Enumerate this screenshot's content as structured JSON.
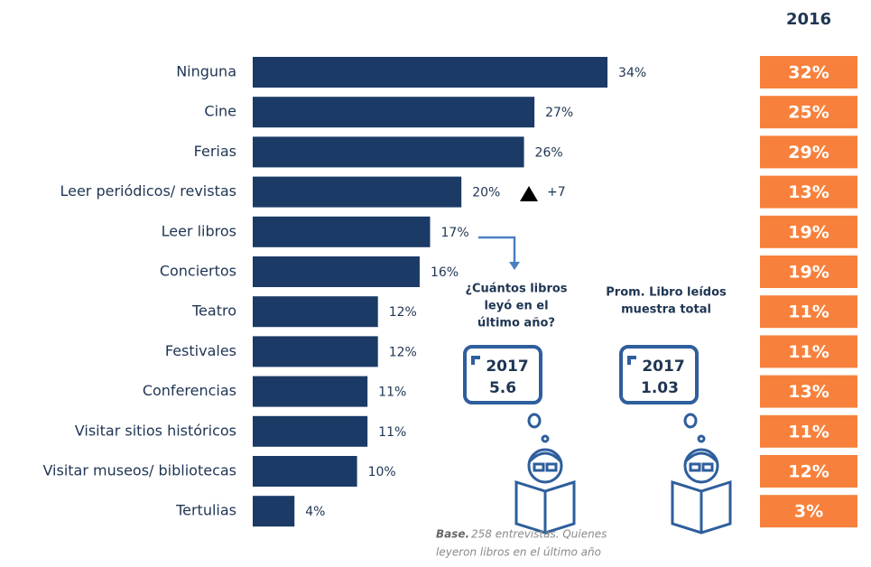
{
  "chart_data": {
    "type": "bar",
    "orientation": "horizontal",
    "categories": [
      "Ninguna",
      "Cine",
      "Ferias",
      "Leer periódicos/ revistas",
      "Leer libros",
      "Conciertos",
      "Teatro",
      "Festivales",
      "Conferencias",
      "Visitar sitios históricos",
      "Visitar museos/ bibliotecas",
      "Tertulias"
    ],
    "values": [
      34,
      27,
      26,
      20,
      17,
      16,
      12,
      12,
      11,
      11,
      10,
      4
    ],
    "value_labels": [
      "34%",
      "27%",
      "26%",
      "20%",
      "17%",
      "16%",
      "12%",
      "12%",
      "11%",
      "11%",
      "10%",
      "4%"
    ],
    "color": "#1b3a66",
    "comparison": {
      "title": "2016",
      "values": [
        32,
        25,
        29,
        13,
        19,
        19,
        11,
        11,
        13,
        11,
        12,
        3
      ],
      "value_labels": [
        "32%",
        "25%",
        "29%",
        "13%",
        "19%",
        "19%",
        "11%",
        "11%",
        "13%",
        "11%",
        "12%",
        "3%"
      ],
      "color": "#f7813c"
    },
    "annotations": {
      "change": "+7",
      "question": [
        "¿Cuántos libros",
        "leyó en el",
        "último año?"
      ],
      "question_year": "2017",
      "question_value": 5.6,
      "average": [
        "Prom. Libro leídos",
        "muestra total"
      ],
      "average_year": "2017",
      "average_value": 1.03,
      "base_label": "Base.",
      "base_text": [
        "258 entrevistas. Quienes",
        "leyeron libros en el último año"
      ]
    }
  }
}
